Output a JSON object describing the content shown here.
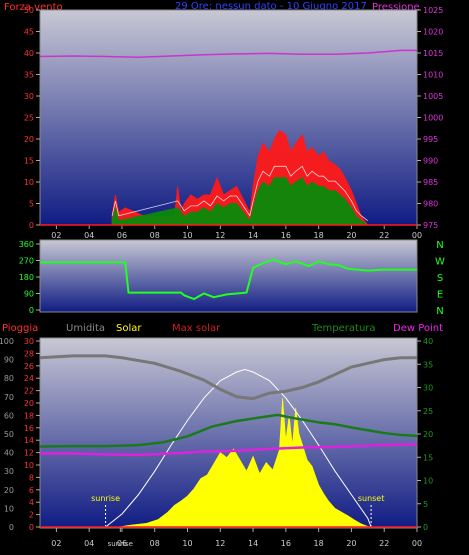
{
  "colors": {
    "wind": "#ff1a1a",
    "gust_fill": "#ff1a1a",
    "avg_fill": "#0a8a0a",
    "pressure": "#cc33cc",
    "direction": "#22ff22",
    "rain": "#ff1a1a",
    "humidity": "#777777",
    "solar": "#ffff00",
    "max_solar": "#ffffff",
    "temperature": "#1a7a1a",
    "dewpoint": "#dd22dd",
    "axis_text": "#cccccc",
    "bg_top": "#c8c8d4",
    "bg_bottom": "#101c84"
  },
  "chart_data": [
    {
      "id": "wind-pressure",
      "type": "line",
      "title": "29 Ore: nessun dato - 10 Giugno 2017",
      "left_label": "Forza vento",
      "right_label": "Pressione",
      "x_ticks": [
        "02",
        "04",
        "06",
        "08",
        "10",
        "12",
        "14",
        "16",
        "18",
        "20",
        "22",
        "00"
      ],
      "y_ticks_left": [
        "0",
        "5",
        "10",
        "15",
        "20",
        "25",
        "30",
        "35",
        "40",
        "45",
        "50"
      ],
      "y_ticks_right": [
        "975",
        "980",
        "985",
        "990",
        "995",
        "1000",
        "1005",
        "1010",
        "1015",
        "1020",
        "1025"
      ],
      "ylim_left": [
        0,
        50
      ],
      "ylim_right": [
        975,
        1025
      ],
      "xlim": [
        1,
        24
      ],
      "series": [
        {
          "key": "gust",
          "points": [
            [
              5.4,
              2
            ],
            [
              5.6,
              7
            ],
            [
              5.8,
              3
            ],
            [
              6.2,
              4
            ],
            [
              7.4,
              2
            ],
            [
              9.2,
              2
            ],
            [
              9.4,
              9
            ],
            [
              9.6,
              3
            ],
            [
              9.8,
              5
            ],
            [
              10.2,
              7
            ],
            [
              10.6,
              6
            ],
            [
              11.0,
              7
            ],
            [
              11.4,
              7
            ],
            [
              11.8,
              11
            ],
            [
              12.2,
              7
            ],
            [
              12.6,
              8
            ],
            [
              13.0,
              9
            ],
            [
              13.4,
              6
            ],
            [
              13.8,
              3
            ],
            [
              14.0,
              9
            ],
            [
              14.3,
              16
            ],
            [
              14.6,
              19
            ],
            [
              15.0,
              17
            ],
            [
              15.3,
              20
            ],
            [
              15.6,
              22
            ],
            [
              16.0,
              21
            ],
            [
              16.3,
              17
            ],
            [
              16.6,
              19
            ],
            [
              17.0,
              21
            ],
            [
              17.3,
              17
            ],
            [
              17.6,
              18
            ],
            [
              18.0,
              16
            ],
            [
              18.3,
              17
            ],
            [
              18.6,
              15
            ],
            [
              19.0,
              14
            ],
            [
              19.3,
              13
            ],
            [
              19.6,
              11
            ],
            [
              20.0,
              8
            ],
            [
              20.3,
              5
            ],
            [
              20.6,
              2
            ],
            [
              21.0,
              0
            ]
          ]
        },
        {
          "key": "avg",
          "points": [
            [
              5.4,
              1
            ],
            [
              5.6,
              4
            ],
            [
              5.8,
              1
            ],
            [
              9.4,
              4
            ],
            [
              9.8,
              2
            ],
            [
              10.2,
              3
            ],
            [
              10.6,
              3
            ],
            [
              11.0,
              4
            ],
            [
              11.4,
              3
            ],
            [
              11.8,
              5
            ],
            [
              12.2,
              4
            ],
            [
              12.6,
              5
            ],
            [
              13.0,
              5
            ],
            [
              13.4,
              3
            ],
            [
              13.8,
              1
            ],
            [
              14.0,
              4
            ],
            [
              14.3,
              8
            ],
            [
              14.6,
              10
            ],
            [
              15.0,
              9
            ],
            [
              15.3,
              11
            ],
            [
              15.6,
              11
            ],
            [
              16.0,
              11
            ],
            [
              16.3,
              9
            ],
            [
              16.6,
              10
            ],
            [
              17.0,
              11
            ],
            [
              17.3,
              9
            ],
            [
              17.6,
              10
            ],
            [
              18.0,
              9
            ],
            [
              18.3,
              9
            ],
            [
              18.6,
              8
            ],
            [
              19.0,
              8
            ],
            [
              19.3,
              7
            ],
            [
              19.6,
              6
            ],
            [
              20.0,
              4
            ],
            [
              20.3,
              2
            ],
            [
              20.6,
              1
            ],
            [
              21.0,
              0
            ]
          ]
        },
        {
          "key": "pressure",
          "points": [
            [
              1,
              1014.2
            ],
            [
              3,
              1014.3
            ],
            [
              5,
              1014.2
            ],
            [
              7,
              1014.0
            ],
            [
              9,
              1014.3
            ],
            [
              11,
              1014.6
            ],
            [
              13,
              1014.8
            ],
            [
              15,
              1014.9
            ],
            [
              17,
              1014.7
            ],
            [
              19,
              1014.7
            ],
            [
              21,
              1015.0
            ],
            [
              23,
              1015.6
            ],
            [
              24,
              1015.6
            ]
          ]
        }
      ]
    },
    {
      "id": "wind-direction",
      "type": "line",
      "right_labels": [
        "N",
        "W",
        "S",
        "E",
        "N"
      ],
      "y_ticks": [
        "0",
        "90",
        "180",
        "270",
        "360"
      ],
      "ylim": [
        0,
        360
      ],
      "xlim": [
        1,
        24
      ],
      "series": [
        {
          "key": "direction",
          "points": [
            [
              1,
              260
            ],
            [
              6.2,
              260
            ],
            [
              6.4,
              95
            ],
            [
              9.6,
              95
            ],
            [
              9.8,
              80
            ],
            [
              10.4,
              60
            ],
            [
              11,
              90
            ],
            [
              11.6,
              70
            ],
            [
              12.4,
              85
            ],
            [
              13.6,
              95
            ],
            [
              14.0,
              230
            ],
            [
              14.6,
              255
            ],
            [
              15.2,
              275
            ],
            [
              16.0,
              250
            ],
            [
              16.6,
              265
            ],
            [
              17.4,
              240
            ],
            [
              18.0,
              265
            ],
            [
              18.6,
              250
            ],
            [
              19.2,
              245
            ],
            [
              19.8,
              225
            ],
            [
              21,
              215
            ],
            [
              22,
              220
            ],
            [
              24,
              220
            ]
          ]
        }
      ]
    },
    {
      "id": "rain-solar-temp",
      "type": "area",
      "labels": [
        "Pioggia",
        "Umidita",
        "Solar",
        "Max solar",
        "Temperatura",
        "Dew Point"
      ],
      "x_ticks": [
        "02",
        "04",
        "sunrise",
        "06",
        "08",
        "10",
        "12",
        "14",
        "16",
        "18",
        "20",
        "22",
        "00"
      ],
      "y_ticks_humidity": [
        "0",
        "10",
        "20",
        "30",
        "40",
        "50",
        "60",
        "70",
        "80",
        "90",
        "100"
      ],
      "y_ticks_rain": [
        "0",
        "2",
        "4",
        "6",
        "8",
        "10",
        "12",
        "14",
        "16",
        "18",
        "20",
        "22",
        "24",
        "26",
        "28",
        "30"
      ],
      "y_ticks_temp": [
        "0",
        "5",
        "10",
        "15",
        "20",
        "25",
        "30",
        "35",
        "40"
      ],
      "annotations": [
        "sunrise",
        "sunset"
      ],
      "sunrise_x": 5.0,
      "sunset_x": 21.2,
      "ylim_humidity": [
        0,
        100
      ],
      "ylim_rain": [
        0,
        30
      ],
      "ylim_temp": [
        0,
        40
      ],
      "xlim": [
        1,
        24
      ],
      "series": [
        {
          "key": "humidity",
          "points": [
            [
              1,
              91
            ],
            [
              3,
              92
            ],
            [
              5,
              92
            ],
            [
              6,
              91
            ],
            [
              8,
              88
            ],
            [
              9.5,
              84
            ],
            [
              11,
              79
            ],
            [
              12,
              74
            ],
            [
              13,
              70
            ],
            [
              14,
              69
            ],
            [
              15,
              72
            ],
            [
              16,
              73
            ],
            [
              17,
              75
            ],
            [
              18,
              78
            ],
            [
              19,
              82
            ],
            [
              20,
              86
            ],
            [
              21,
              88
            ],
            [
              22,
              90
            ],
            [
              23,
              91
            ],
            [
              24,
              91
            ]
          ]
        },
        {
          "key": "temperature",
          "points": [
            [
              1,
              17.3
            ],
            [
              3,
              17.4
            ],
            [
              5,
              17.4
            ],
            [
              7,
              17.6
            ],
            [
              8.5,
              18.2
            ],
            [
              10,
              19.5
            ],
            [
              11.5,
              21.6
            ],
            [
              13,
              22.8
            ],
            [
              14.5,
              23.6
            ],
            [
              15.5,
              24.1
            ],
            [
              16.5,
              23.4
            ],
            [
              18,
              22.5
            ],
            [
              19,
              22.1
            ],
            [
              20,
              21.4
            ],
            [
              21,
              20.8
            ],
            [
              22,
              20.2
            ],
            [
              23,
              19.8
            ],
            [
              24,
              19.6
            ]
          ]
        },
        {
          "key": "dewpoint",
          "points": [
            [
              1,
              15.8
            ],
            [
              3,
              15.8
            ],
            [
              5,
              15.6
            ],
            [
              7,
              15.5
            ],
            [
              9,
              15.8
            ],
            [
              11,
              16.2
            ],
            [
              13,
              16.4
            ],
            [
              15,
              16.8
            ],
            [
              17,
              17.1
            ],
            [
              19,
              17.2
            ],
            [
              21,
              17.5
            ],
            [
              23,
              17.7
            ],
            [
              24,
              17.8
            ]
          ]
        },
        {
          "key": "max_solar",
          "points": [
            [
              5.0,
              0
            ],
            [
              6,
              2.1
            ],
            [
              7,
              5.2
            ],
            [
              8,
              9.0
            ],
            [
              9,
              13.2
            ],
            [
              10,
              17.2
            ],
            [
              11,
              20.8
            ],
            [
              12,
              23.6
            ],
            [
              13,
              25.0
            ],
            [
              13.5,
              25.4
            ],
            [
              14,
              25.0
            ],
            [
              15,
              23.6
            ],
            [
              16,
              20.8
            ],
            [
              17,
              17.2
            ],
            [
              18,
              13.2
            ],
            [
              19,
              9.0
            ],
            [
              20,
              5.2
            ],
            [
              21,
              1.4
            ],
            [
              21.2,
              0
            ]
          ]
        },
        {
          "key": "solar",
          "points": [
            [
              5.8,
              0
            ],
            [
              6.5,
              0.3
            ],
            [
              7.5,
              0.6
            ],
            [
              8.2,
              1.2
            ],
            [
              8.8,
              2.4
            ],
            [
              9.2,
              3.5
            ],
            [
              9.6,
              4.2
            ],
            [
              10.0,
              5.0
            ],
            [
              10.4,
              6.2
            ],
            [
              10.8,
              7.8
            ],
            [
              11.2,
              8.4
            ],
            [
              11.6,
              10.2
            ],
            [
              12.0,
              12.0
            ],
            [
              12.4,
              11.2
            ],
            [
              12.8,
              12.6
            ],
            [
              13.2,
              10.8
            ],
            [
              13.6,
              9.0
            ],
            [
              14.0,
              11.4
            ],
            [
              14.4,
              8.6
            ],
            [
              14.8,
              10.4
            ],
            [
              15.2,
              9.2
            ],
            [
              15.6,
              12.4
            ],
            [
              15.8,
              20.8
            ],
            [
              16.0,
              14.0
            ],
            [
              16.2,
              18.0
            ],
            [
              16.4,
              13.2
            ],
            [
              16.6,
              19.2
            ],
            [
              16.8,
              15.0
            ],
            [
              17.0,
              13.4
            ],
            [
              17.3,
              10.8
            ],
            [
              17.6,
              9.8
            ],
            [
              18.0,
              6.8
            ],
            [
              18.3,
              5.4
            ],
            [
              18.6,
              4.2
            ],
            [
              19.0,
              3.0
            ],
            [
              19.4,
              2.4
            ],
            [
              19.8,
              1.8
            ],
            [
              20.2,
              1.1
            ],
            [
              20.6,
              0.5
            ],
            [
              21.0,
              0.1
            ],
            [
              21.4,
              0
            ]
          ]
        },
        {
          "key": "rain",
          "points": [
            [
              1,
              0
            ],
            [
              24,
              0
            ]
          ]
        }
      ]
    }
  ]
}
